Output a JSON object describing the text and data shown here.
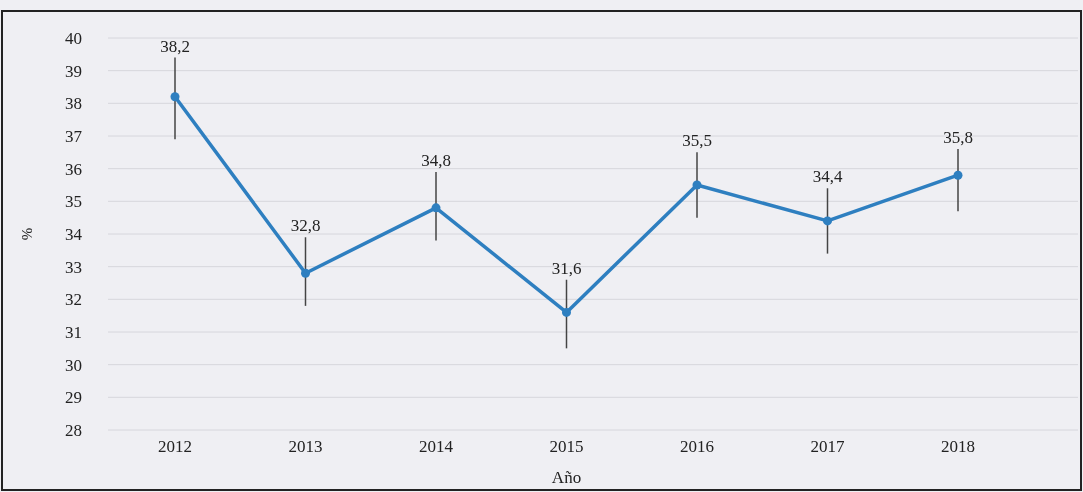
{
  "chart_data": {
    "type": "line",
    "xlabel": "Año",
    "ylabel": "%",
    "categories": [
      "2012",
      "2013",
      "2014",
      "2015",
      "2016",
      "2017",
      "2018"
    ],
    "series": [
      {
        "color": "#2e7fc0",
        "values": [
          38.2,
          32.8,
          34.8,
          31.6,
          35.5,
          34.4,
          35.8
        ],
        "value_labels": [
          "38,2",
          "32,8",
          "34,8",
          "31,6",
          "35,5",
          "34,4",
          "35,8"
        ],
        "errors": [
          [
            36.9,
            39.4
          ],
          [
            31.8,
            33.9
          ],
          [
            33.8,
            35.9
          ],
          [
            30.5,
            32.6
          ],
          [
            34.5,
            36.5
          ],
          [
            33.4,
            35.4
          ],
          [
            34.7,
            36.6
          ]
        ]
      }
    ],
    "ylim": [
      28,
      40
    ],
    "yticks": [
      28,
      29,
      30,
      31,
      32,
      33,
      34,
      35,
      36,
      37,
      38,
      39,
      40
    ],
    "grid": "y",
    "marker": "circle",
    "line_style": "solid"
  }
}
